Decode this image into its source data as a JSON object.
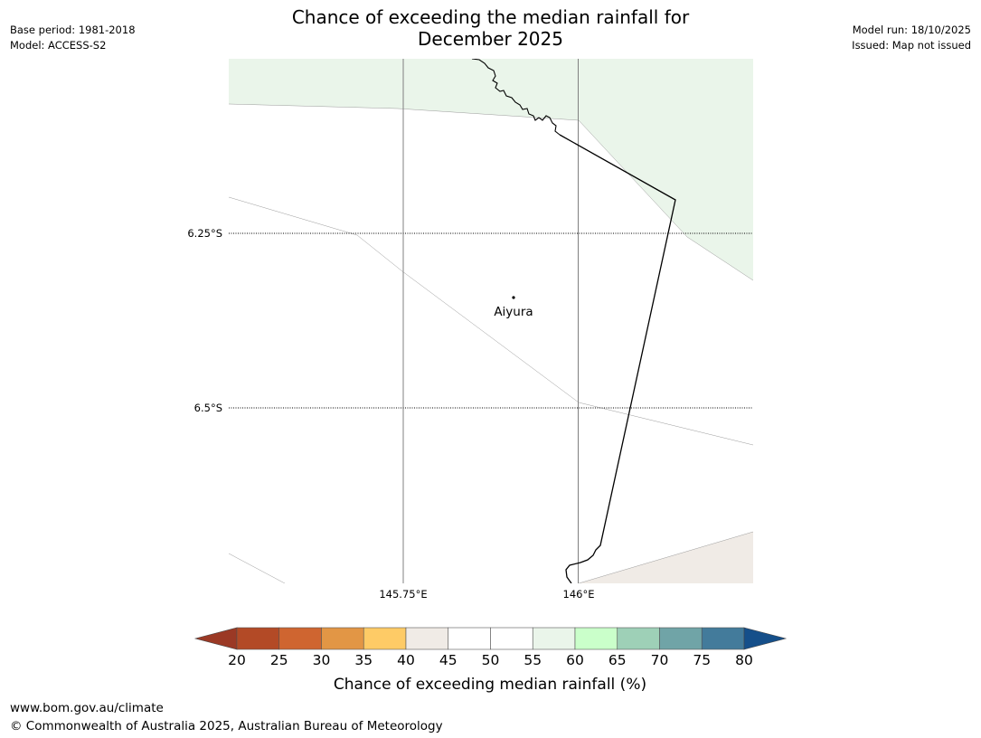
{
  "title": {
    "line1": "Chance of exceeding the median rainfall for",
    "line2": "December 2025"
  },
  "meta_left": {
    "base_period": "Base period: 1981-2018",
    "model": "Model: ACCESS-S2"
  },
  "meta_right": {
    "model_run": "Model run: 18/10/2025",
    "issued": "Issued: Map not issued"
  },
  "map": {
    "lat_labels": [
      "6.25°S",
      "6.5°S"
    ],
    "lon_labels": [
      "145.75°E",
      "146°E"
    ],
    "place": "Aiyura",
    "colors": {
      "green_light": "#eaf5ea",
      "beige": "#f0ebe6",
      "border": "#000000",
      "grid": "#808080"
    }
  },
  "colorbar": {
    "title": "Chance of exceeding median rainfall (%)",
    "ticks": [
      "20",
      "25",
      "30",
      "35",
      "40",
      "45",
      "50",
      "55",
      "60",
      "65",
      "70",
      "75",
      "80"
    ],
    "low_color": "#9b3925",
    "high_color": "#154f8a",
    "colors": [
      "#b34a26",
      "#cf6530",
      "#e29645",
      "#fecb66",
      "#f0ebe6",
      "#ffffff",
      "#ffffff",
      "#eaf5ea",
      "#caffca",
      "#9ed0b7",
      "#70a4a7",
      "#437b9b"
    ]
  },
  "footer": {
    "url": "www.bom.gov.au/climate",
    "copyright": "© Commonwealth of Australia 2025, Australian Bureau of Meteorology"
  }
}
